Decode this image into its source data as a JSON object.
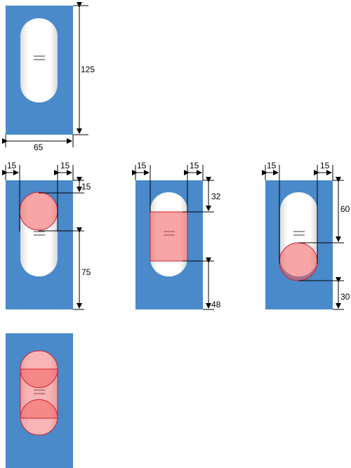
{
  "colors": {
    "panel_blue": "#4a89ca",
    "knob_white": "#ffffff",
    "overlay_red": "#f25b5b",
    "overlay_stroke": "#d11f2f",
    "dimension_line": "#000000"
  },
  "icons": {
    "grip": "grip-lines-icon"
  },
  "top_figure": {
    "height_label": "125",
    "width_label": "65"
  },
  "figure_circle_top": {
    "left_margin_label": "15",
    "right_margin_label": "15",
    "top_inset_label": "15",
    "bottom_span_label": "75"
  },
  "figure_rect_middle": {
    "left_margin_label": "15",
    "right_margin_label": "15",
    "top_inset_label": "32",
    "bottom_inset_label": "48"
  },
  "figure_circle_bottom": {
    "left_margin_label": "15",
    "right_margin_label": "15",
    "top_span_label": "60",
    "bottom_inset_label": "30"
  }
}
